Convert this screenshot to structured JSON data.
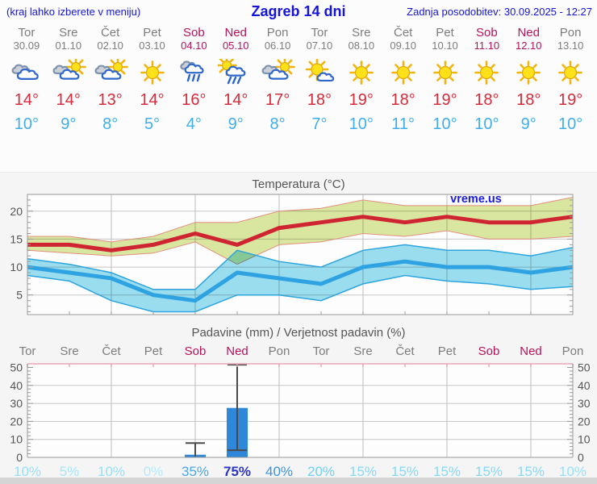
{
  "header": {
    "left_note": "(kraj lahko izberete v meniju)",
    "title": "Zagreb 14 dni",
    "updated": "Zadnja posodobitev: 30.09.2025 - 12:27"
  },
  "days": [
    {
      "name": "Tor",
      "date": "30.09",
      "weekend": false,
      "icon": "cloudy",
      "tmax_label": "14°",
      "tmin_label": "10°"
    },
    {
      "name": "Sre",
      "date": "01.10",
      "weekend": false,
      "icon": "partly-cloudy",
      "tmax_label": "14°",
      "tmin_label": "9°"
    },
    {
      "name": "Čet",
      "date": "02.10",
      "weekend": false,
      "icon": "partly-cloudy",
      "tmax_label": "13°",
      "tmin_label": "8°"
    },
    {
      "name": "Pet",
      "date": "03.10",
      "weekend": false,
      "icon": "sunny",
      "tmax_label": "14°",
      "tmin_label": "5°"
    },
    {
      "name": "Sob",
      "date": "04.10",
      "weekend": true,
      "icon": "rain",
      "tmax_label": "16°",
      "tmin_label": "4°"
    },
    {
      "name": "Ned",
      "date": "05.10",
      "weekend": true,
      "icon": "sun-showers",
      "tmax_label": "14°",
      "tmin_label": "9°"
    },
    {
      "name": "Pon",
      "date": "06.10",
      "weekend": false,
      "icon": "partly-cloudy",
      "tmax_label": "17°",
      "tmin_label": "8°"
    },
    {
      "name": "Tor",
      "date": "07.10",
      "weekend": false,
      "icon": "mostly-sunny",
      "tmax_label": "18°",
      "tmin_label": "7°"
    },
    {
      "name": "Sre",
      "date": "08.10",
      "weekend": false,
      "icon": "sunny",
      "tmax_label": "19°",
      "tmin_label": "10°"
    },
    {
      "name": "Čet",
      "date": "09.10",
      "weekend": false,
      "icon": "sunny",
      "tmax_label": "18°",
      "tmin_label": "11°"
    },
    {
      "name": "Pet",
      "date": "10.10",
      "weekend": false,
      "icon": "sunny",
      "tmax_label": "19°",
      "tmin_label": "10°"
    },
    {
      "name": "Sob",
      "date": "11.10",
      "weekend": true,
      "icon": "sunny",
      "tmax_label": "18°",
      "tmin_label": "10°"
    },
    {
      "name": "Ned",
      "date": "12.10",
      "weekend": true,
      "icon": "sunny",
      "tmax_label": "18°",
      "tmin_label": "9°"
    },
    {
      "name": "Pon",
      "date": "13.10",
      "weekend": false,
      "icon": "sunny",
      "tmax_label": "19°",
      "tmin_label": "10°"
    }
  ],
  "chart_data": [
    {
      "type": "line",
      "title": "Temperatura (°C)",
      "x_categories": [
        "Tor",
        "Sre",
        "Čet",
        "Pet",
        "Sob",
        "Ned",
        "Pon",
        "Tor",
        "Sre",
        "Čet",
        "Pet",
        "Sob",
        "Ned",
        "Pon"
      ],
      "series": [
        {
          "name": "t_max",
          "color": "#cf2533",
          "values": [
            14,
            14,
            13,
            14,
            16,
            14,
            17,
            18,
            19,
            18,
            19,
            18,
            18,
            19
          ]
        },
        {
          "name": "t_max_upper",
          "values": [
            15.5,
            15.5,
            14.5,
            15.5,
            18,
            18,
            20,
            20.5,
            22,
            21,
            21,
            21,
            21,
            22.5
          ]
        },
        {
          "name": "t_max_lower",
          "values": [
            13,
            12.5,
            12,
            12.5,
            14.5,
            10.5,
            14,
            14.5,
            16,
            15.5,
            16.5,
            15,
            15,
            15.5
          ]
        },
        {
          "name": "t_min",
          "color": "#2fa3e2",
          "values": [
            10,
            9,
            8,
            5,
            4,
            9,
            8,
            7,
            10,
            11,
            10,
            10,
            9,
            10
          ]
        },
        {
          "name": "t_min_upper",
          "values": [
            11.5,
            10.5,
            9,
            6,
            6,
            13,
            11,
            10,
            13,
            14,
            13,
            13,
            12,
            13.5
          ]
        },
        {
          "name": "t_min_lower",
          "values": [
            8.5,
            7.5,
            4,
            2,
            2,
            5,
            5,
            4,
            7,
            8.5,
            7.5,
            7,
            6,
            6.5
          ]
        }
      ],
      "ylim": [
        1.5,
        23
      ],
      "yticks": [
        5,
        10,
        15,
        20
      ],
      "grid": true,
      "legend": "none",
      "watermark": "vreme.us"
    },
    {
      "type": "bar",
      "title": "Padavine (mm) / Verjetnost padavin (%)",
      "categories": [
        "Tor",
        "Sre",
        "Čet",
        "Pet",
        "Sob",
        "Ned",
        "Pon",
        "Tor",
        "Sre",
        "Čet",
        "Pet",
        "Sob",
        "Ned",
        "Pon"
      ],
      "values": [
        0,
        0,
        0,
        0,
        1.5,
        27.5,
        0,
        0,
        0,
        0,
        0,
        0,
        0,
        0
      ],
      "whisker_low": [
        null,
        null,
        null,
        null,
        0.5,
        4,
        null,
        null,
        null,
        null,
        null,
        null,
        null,
        null
      ],
      "whisker_high": [
        null,
        null,
        null,
        null,
        8,
        51.5,
        null,
        null,
        null,
        null,
        null,
        null,
        null,
        null
      ],
      "probabilities": [
        10,
        5,
        10,
        0,
        35,
        75,
        40,
        20,
        15,
        15,
        15,
        15,
        15,
        10
      ],
      "prob_labels": [
        "10%",
        "5%",
        "10%",
        "0%",
        "35%",
        "75%",
        "40%",
        "20%",
        "15%",
        "15%",
        "15%",
        "15%",
        "15%",
        "10%"
      ],
      "ylim": [
        0,
        52
      ],
      "yticks": [
        0,
        10,
        20,
        30,
        40,
        50
      ],
      "grid": true
    }
  ],
  "colors": {
    "header_blue": "#1414dd",
    "weekday": "#7d7d7d",
    "weekend": "#b5135b",
    "tmax_text": "#d62b3a",
    "tmin_text": "#41aeea",
    "max_line": "#cf2533",
    "max_band": "#dbe8a0",
    "max_band_edge": "#e2907e",
    "min_line": "#2fa3e2",
    "min_band": "#9bdff1",
    "min_band_edge": "#2da4dd",
    "grid": "#c6c6c6",
    "spine": "#999999",
    "axis_label": "#555555",
    "bar": "#2e87d8",
    "whisker": "#4a4a4a",
    "top_spine_pink": "#e8a7b8",
    "watermark": "#1a1ae0",
    "prob": {
      "0": "#b4eafa",
      "5": "#a6e5f8",
      "10": "#97e0f6",
      "15": "#85d9f4",
      "20": "#6fcff1",
      "35": "#4aa5e6",
      "40": "#3b93de",
      "75": "#2b35c4"
    }
  }
}
